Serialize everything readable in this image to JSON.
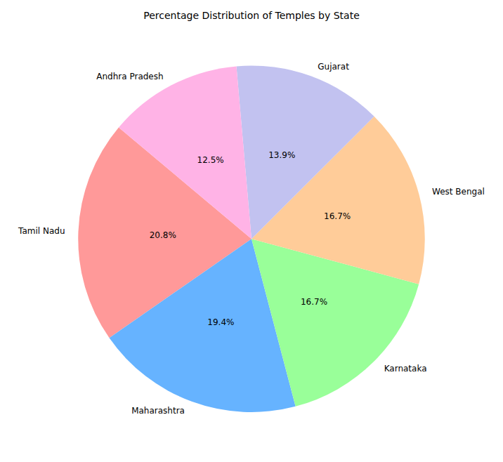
{
  "chart_data": {
    "type": "pie",
    "title": "Percentage Distribution of Temples by State",
    "categories": [
      "Tamil Nadu",
      "Maharashtra",
      "Karnataka",
      "West Bengal",
      "Gujarat",
      "Andhra Pradesh"
    ],
    "values": [
      20.8,
      19.4,
      16.7,
      16.7,
      13.9,
      12.5
    ],
    "value_labels": [
      "20.8%",
      "19.4%",
      "16.7%",
      "16.7%",
      "13.9%",
      "12.5%"
    ],
    "colors": [
      "#ff9999",
      "#66b3ff",
      "#99ff99",
      "#ffcc99",
      "#c2c2f0",
      "#ffb3e6"
    ],
    "data_labels": true
  }
}
